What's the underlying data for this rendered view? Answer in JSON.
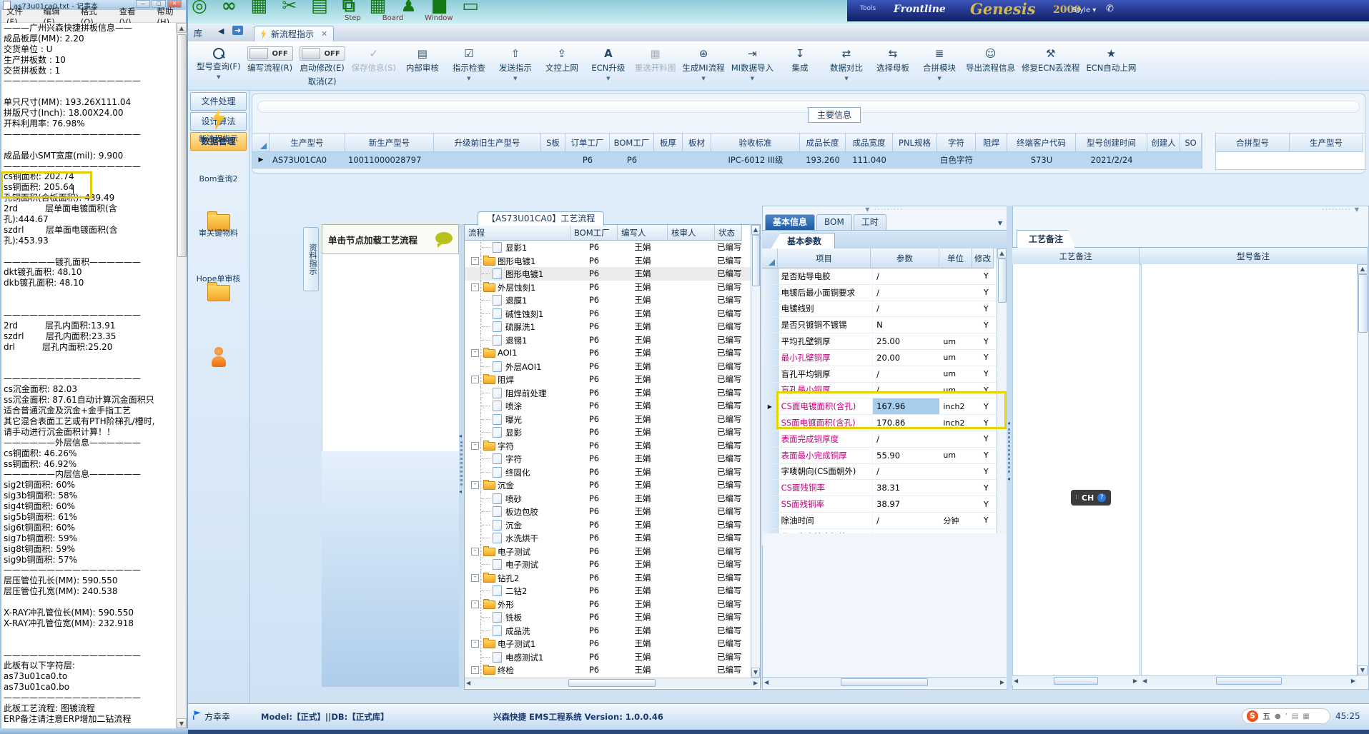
{
  "background": {
    "tools_label": "Tools",
    "brand": "Frontline",
    "product": "Genesis",
    "year": "2000",
    "style_label": "Style ▾",
    "menus": [
      "Step",
      "Board",
      "Window"
    ]
  },
  "notepad": {
    "title": "as73u01ca0.txt - 记事本",
    "menus": [
      "文件(F)",
      "编辑(E)",
      "格式(O)",
      "查看(V)",
      "帮助(H)"
    ],
    "lines": [
      "———广州兴森快捷拼板信息——",
      "成品板厚(MM): 2.20",
      "交货单位 : U",
      "生产拼板数 : 10",
      "交货拼板数 : 1",
      "————————————————",
      "",
      "单只尺寸(MM): 193.26X111.04",
      "拼版尺寸(Inch): 18.00X24.00",
      "开料利用率: 76.98%",
      "————————————————",
      "",
      "成品最小SMT宽度(mil): 9.900",
      "————————————————",
      "cs铜面积: 202.74",
      "ss铜面积: 205.64",
      "孔铜面积(含板面积): 439.49",
      "2rd          层单面电镀面积(含",
      "孔):444.67",
      "szdrl        层单面电镀面积(含",
      "孔):453.93",
      "",
      "——————镀孔面积——————",
      "dkt镀孔面积: 48.10",
      "dkb镀孔面积: 48.10",
      "",
      "",
      "————————————————",
      "2rd          层孔内面积:13.91",
      "szdrl        层孔内面积:23.35",
      "drl          层孔内面积:25.20",
      "",
      "",
      "————————————————",
      "cs沉金面积: 82.03",
      "ss沉金面积: 87.61自动计算沉金面积只",
      "适合普通沉金及沉金+金手指工艺",
      "其它混合表面工艺或有PTH阶梯孔/槽时,",
      "请手动进行沉金面积计算！！",
      "——————外层信息——————",
      "cs铜面积: 46.26%",
      "ss铜面积: 46.92%",
      "——————内层信息——————",
      "sig2t铜面积: 60%",
      "sig3b铜面积: 58%",
      "sig4t铜面积: 60%",
      "sig5b铜面积: 61%",
      "sig6t铜面积: 60%",
      "sig7b铜面积: 59%",
      "sig8t铜面积: 59%",
      "sig9b铜面积: 57%",
      "————————————————",
      "层压管位孔长(MM): 590.550",
      "层压管位孔宽(MM): 240.538",
      "",
      "X-RAY冲孔管位长(MM): 590.550",
      "X-RAY冲孔管位宽(MM): 232.918",
      "",
      "",
      "————————————————",
      "此板有以下字符层:",
      "as73u01ca0.to",
      "as73u01ca0.bo",
      "————————————————",
      "此板工艺流程: 图镀流程",
      "ERP备注请注意ERP增加二钻流程"
    ],
    "highlight": {
      "first_line": 14,
      "last_line": 15
    }
  },
  "window": {
    "nav_prefix": "库",
    "tab_label": "新流程指示"
  },
  "toolbar": {
    "buttons": [
      {
        "name": "model-search",
        "label": "型号查询(F)",
        "icon": "search",
        "caret": true
      },
      {
        "name": "write-flow",
        "label": "编写流程(R)",
        "toggle": "OFF"
      },
      {
        "name": "start-modify",
        "label": "启动修改(E)",
        "toggle": "OFF",
        "sub": "取消(Z)"
      },
      {
        "name": "save-info",
        "label": "保存信息(S)",
        "icon": "check",
        "disabled": true
      },
      {
        "name": "internal-review",
        "label": "内部审核",
        "icon": "printer"
      },
      {
        "name": "instruction-check",
        "label": "指示检查",
        "icon": "checkbox",
        "caret": true
      },
      {
        "name": "send-instruction",
        "label": "发送指示",
        "icon": "send",
        "caret": true
      },
      {
        "name": "doc-control-upload",
        "label": "文控上网",
        "icon": "upload"
      },
      {
        "name": "ecn-upgrade",
        "label": "ECN升级",
        "icon": "letterA",
        "caret": true
      },
      {
        "name": "reselect-cut-map",
        "label": "重选开料图",
        "icon": "image",
        "disabled": true
      },
      {
        "name": "generate-mi-flow",
        "label": "生成MI流程",
        "icon": "gears",
        "caret": true
      },
      {
        "name": "mi-data-import",
        "label": "MI数据导入",
        "icon": "import",
        "caret": true
      },
      {
        "name": "integrate",
        "label": "集成",
        "icon": "download"
      },
      {
        "name": "data-compare",
        "label": "数据对比",
        "icon": "compare",
        "caret": true
      },
      {
        "name": "select-mother-board",
        "label": "选择母板",
        "icon": "shuffle"
      },
      {
        "name": "merge-module",
        "label": "合拼模块",
        "icon": "list",
        "caret": true
      },
      {
        "name": "export-flow-info",
        "label": "导出流程信息",
        "icon": "smiley"
      },
      {
        "name": "repair-ecn-flow",
        "label": "修复ECN丢流程",
        "icon": "wrench"
      },
      {
        "name": "ecn-auto-upload",
        "label": "ECN自动上网",
        "icon": "star"
      }
    ]
  },
  "sidebar": {
    "buttons": [
      {
        "name": "file-processing",
        "label": "文件处理"
      },
      {
        "name": "design-algorithm",
        "label": "设计算法"
      },
      {
        "name": "data-management",
        "label": "数据管理",
        "active": true
      }
    ],
    "tools": [
      {
        "name": "new-flow-instruction",
        "icon": "lightning",
        "label": "新流程指示"
      },
      {
        "name": "bom-query2",
        "icon": "folder",
        "label": "Bom查询2"
      },
      {
        "name": "review-key-materials",
        "icon": "folder",
        "label": "审关键物料"
      },
      {
        "name": "hope-review",
        "icon": "person",
        "label": "Hope单审核"
      }
    ]
  },
  "main_table": {
    "group_label": "主要信息",
    "columns": [
      "生产型号",
      "新生产型号",
      "升级前旧生产型号",
      "S板",
      "订单工厂",
      "BOM工厂",
      "板厚",
      "板材",
      "验收标准",
      "成品长度",
      "成品宽度",
      "PNL规格",
      "字符",
      "阻焊",
      "终端客户代码",
      "型号创建时间",
      "创建人",
      "SO"
    ],
    "row": [
      "AS73U01CA0",
      "10011000028797",
      "",
      "",
      "P6",
      "P6",
      "",
      "",
      "IPC-6012 III级",
      "193.260",
      "111.040",
      "",
      "白色字符",
      "",
      "S73U",
      "2021/2/24",
      "",
      ""
    ],
    "side_columns": [
      "合拼型号",
      "生产型号"
    ]
  },
  "flow": {
    "vertical_tab": "资料指示",
    "hint": "单击节点加载工艺流程",
    "title": "【AS73U01CA0】工艺流程",
    "columns": [
      "流程",
      "BOM工厂",
      "编写人",
      "核审人",
      "状态"
    ],
    "default_bom": "P6",
    "default_writer": "王娟",
    "default_status": "已编写",
    "rows": [
      {
        "name": "显影1",
        "type": "leaf"
      },
      {
        "name": "图形电镀1",
        "type": "folder"
      },
      {
        "name": "图形电镀1",
        "type": "leaf",
        "selected": true
      },
      {
        "name": "外层蚀刻1",
        "type": "folder"
      },
      {
        "name": "退膜1",
        "type": "leaf"
      },
      {
        "name": "碱性蚀刻1",
        "type": "leaf"
      },
      {
        "name": "硫脲洗1",
        "type": "leaf"
      },
      {
        "name": "退锡1",
        "type": "leaf"
      },
      {
        "name": "AOI1",
        "type": "folder"
      },
      {
        "name": "外层AOI1",
        "type": "leaf"
      },
      {
        "name": "阻焊",
        "type": "folder"
      },
      {
        "name": "阻焊前处理",
        "type": "leaf"
      },
      {
        "name": "喷涂",
        "type": "leaf"
      },
      {
        "name": "曝光",
        "type": "leaf"
      },
      {
        "name": "显影",
        "type": "leaf"
      },
      {
        "name": "字符",
        "type": "folder"
      },
      {
        "name": "字符",
        "type": "leaf"
      },
      {
        "name": "终固化",
        "type": "leaf"
      },
      {
        "name": "沉金",
        "type": "folder"
      },
      {
        "name": "喷砂",
        "type": "leaf"
      },
      {
        "name": "板边包胶",
        "type": "leaf"
      },
      {
        "name": "沉金",
        "type": "leaf"
      },
      {
        "name": "水洗烘干",
        "type": "leaf"
      },
      {
        "name": "电子测试",
        "type": "folder"
      },
      {
        "name": "电子测试",
        "type": "leaf"
      },
      {
        "name": "钻孔2",
        "type": "folder"
      },
      {
        "name": "二钻2",
        "type": "leaf"
      },
      {
        "name": "外形",
        "type": "folder"
      },
      {
        "name": "铣板",
        "type": "leaf"
      },
      {
        "name": "成品洗",
        "type": "leaf"
      },
      {
        "name": "电子测试1",
        "type": "folder"
      },
      {
        "name": "电感测试1",
        "type": "leaf"
      },
      {
        "name": "终检",
        "type": "folder"
      }
    ]
  },
  "params": {
    "tabs": [
      "基本信息",
      "BOM",
      "工时"
    ],
    "active_tab": "基本信息",
    "subtab": "基本参数",
    "columns": [
      "项目",
      "参数",
      "单位",
      "修改"
    ],
    "rows": [
      {
        "item": "是否贴导电胶",
        "value": "/",
        "unit": "",
        "modify": "Y"
      },
      {
        "item": "电镀后最小面铜要求",
        "value": "/",
        "unit": "",
        "modify": "Y"
      },
      {
        "item": "电镀线别",
        "value": "/",
        "unit": "",
        "modify": "Y"
      },
      {
        "item": "是否只镀铜不镀锡",
        "value": "N",
        "unit": "",
        "modify": "Y"
      },
      {
        "item": "平均孔壁铜厚",
        "value": "25.00",
        "unit": "um",
        "modify": "Y"
      },
      {
        "item": "最小孔壁铜厚",
        "value": "20.00",
        "unit": "um",
        "modify": "Y",
        "pink": true
      },
      {
        "item": "盲孔平均铜厚",
        "value": "/",
        "unit": "um",
        "modify": "Y"
      },
      {
        "item": "盲孔最小铜厚",
        "value": "/",
        "unit": "um",
        "modify": "Y",
        "pink": true
      },
      {
        "item": "CS面电镀面积(含孔)",
        "value": "167.96",
        "unit": "inch2",
        "modify": "Y",
        "pink": true,
        "highlight": true,
        "selected": true,
        "marker": true
      },
      {
        "item": "SS面电镀面积(含孔)",
        "value": "170.86",
        "unit": "inch2",
        "modify": "Y",
        "pink": true,
        "highlight": true
      },
      {
        "item": "表面完成铜厚度",
        "value": "/",
        "unit": "",
        "modify": "Y",
        "pink": true
      },
      {
        "item": "表面最小完成铜厚",
        "value": "55.90",
        "unit": "um",
        "modify": "Y",
        "pink": true
      },
      {
        "item": "字唛朝向(CS面朝外)",
        "value": "/",
        "unit": "",
        "modify": "Y"
      },
      {
        "item": "CS面残铜率",
        "value": "38.31",
        "unit": "",
        "modify": "Y",
        "pink": true
      },
      {
        "item": "SS面残铜率",
        "value": "38.97",
        "unit": "",
        "modify": "Y",
        "pink": true
      },
      {
        "item": "除油时间",
        "value": "/",
        "unit": "分钟",
        "modify": "Y"
      },
      {
        "item": "是否为高精度阻抗",
        "value": "N",
        "unit": "",
        "modify": "Y"
      }
    ]
  },
  "notes": {
    "tab": "工艺备注",
    "columns": [
      "工艺备注",
      "型号备注"
    ]
  },
  "statusbar": {
    "user": "方幸幸",
    "model_db": "Model:【正式】||DB:【正式库】",
    "app_info": "兴森快捷 EMS工程系统 Version: 1.0.0.46",
    "time": "45:25",
    "ime_letter": "S",
    "ime_mode": "五"
  },
  "float_badge": {
    "label": "CH"
  },
  "colors": {
    "highlight_yellow": "#e6d400",
    "magenta": "#c2007d",
    "selection_blue": "#b9d7f1",
    "active_orange": "#fdbd4e"
  }
}
